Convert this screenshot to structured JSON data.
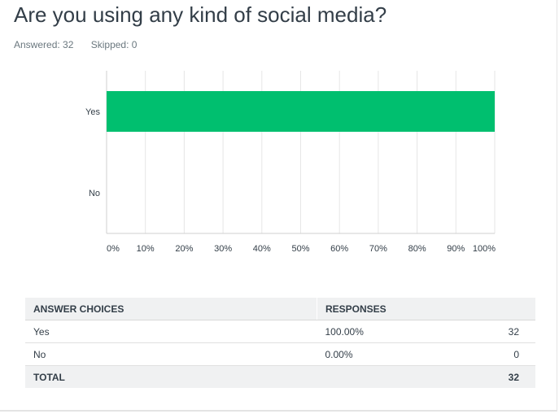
{
  "question": {
    "title": "Are you using any kind of social media?",
    "answered_label": "Answered: 32",
    "skipped_label": "Skipped: 0"
  },
  "colors": {
    "bar": "#00bf6f",
    "grid": "#e6e6e6",
    "axis": "#cfcfcf"
  },
  "chart_data": {
    "type": "bar",
    "orientation": "horizontal",
    "categories": [
      "Yes",
      "No"
    ],
    "values": [
      100,
      0
    ],
    "xlim": [
      0,
      100
    ],
    "xticks": [
      "0%",
      "10%",
      "20%",
      "30%",
      "40%",
      "50%",
      "60%",
      "70%",
      "80%",
      "90%",
      "100%"
    ],
    "grid": true,
    "legend": "none"
  },
  "table": {
    "headers": [
      "ANSWER CHOICES",
      "RESPONSES",
      ""
    ],
    "rows": [
      {
        "choice": "Yes",
        "percent": "100.00%",
        "count": "32"
      },
      {
        "choice": "No",
        "percent": "0.00%",
        "count": "0"
      }
    ],
    "total_label": "TOTAL",
    "total_count": "32"
  }
}
